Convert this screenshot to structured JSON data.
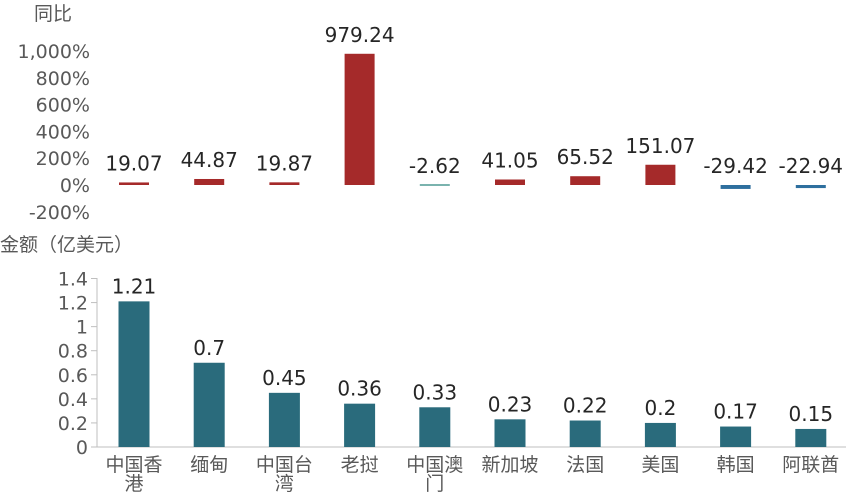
{
  "chart_data": [
    {
      "type": "bar",
      "title": "同比",
      "categories": [
        "中国香港",
        "缅甸",
        "中国台湾",
        "老挝",
        "中国澳门",
        "新加坡",
        "法国",
        "美国",
        "韩国",
        "阿联酋"
      ],
      "values": [
        19.07,
        44.87,
        19.87,
        979.24,
        -2.62,
        41.05,
        65.52,
        151.07,
        -29.42,
        -22.94
      ],
      "value_labels": [
        "19.07",
        "44.87",
        "19.87",
        "979.24",
        "-2.62",
        "41.05",
        "65.52",
        "151.07",
        "-29.42",
        "-22.94"
      ],
      "ylim": [
        -200,
        1000
      ],
      "y_ticks": [
        -200,
        0,
        200,
        400,
        600,
        800,
        1000
      ],
      "y_tick_labels": [
        "-200%",
        "0%",
        "200%",
        "400%",
        "600%",
        "800%",
        "1,000%"
      ],
      "colors": {
        "positive": "#A52A2A",
        "negative": "#2E6F9E",
        "near_zero": "#4F9A94"
      },
      "grid": false
    },
    {
      "type": "bar",
      "title": "金额（亿美元）",
      "categories": [
        "中国香港",
        "缅甸",
        "中国台湾",
        "老挝",
        "中国澳门",
        "新加坡",
        "法国",
        "美国",
        "韩国",
        "阿联酋"
      ],
      "category_lines": [
        [
          "中国香",
          "港"
        ],
        [
          "缅甸"
        ],
        [
          "中国台",
          "湾"
        ],
        [
          "老挝"
        ],
        [
          "中国澳",
          "门"
        ],
        [
          "新加坡"
        ],
        [
          "法国"
        ],
        [
          "美国"
        ],
        [
          "韩国"
        ],
        [
          "阿联酋"
        ]
      ],
      "values": [
        1.21,
        0.7,
        0.45,
        0.36,
        0.33,
        0.23,
        0.22,
        0.2,
        0.17,
        0.15
      ],
      "value_labels": [
        "1.21",
        "0.7",
        "0.45",
        "0.36",
        "0.33",
        "0.23",
        "0.22",
        "0.2",
        "0.17",
        "0.15"
      ],
      "ylim": [
        0,
        1.4
      ],
      "y_ticks": [
        0,
        0.2,
        0.4,
        0.6,
        0.8,
        1,
        1.2,
        1.4
      ],
      "y_tick_labels": [
        "0",
        "0.2",
        "0.4",
        "0.6",
        "0.8",
        "1",
        "1.2",
        "1.4"
      ],
      "colors": {
        "bar": "#2A6B7C",
        "axis": "#BFBFBF"
      },
      "grid": false
    }
  ]
}
